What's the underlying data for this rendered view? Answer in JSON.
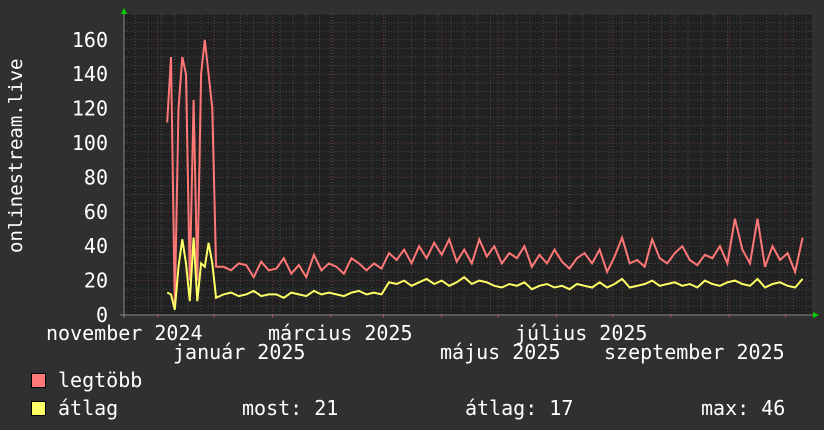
{
  "chart_data": {
    "type": "line",
    "ylabel": "onlinestream.live",
    "ylim": [
      0,
      175
    ],
    "yticks": [
      "0",
      "20",
      "40",
      "60",
      "80",
      "100",
      "120",
      "140",
      "160"
    ],
    "xlim": [
      "2024-10-14",
      "2025-10-15"
    ],
    "xtick_labels": [
      "november 2024",
      "január 2025",
      "március 2025",
      "május 2025",
      "július 2025",
      "szeptember 2025"
    ],
    "grid": true,
    "background": "#303030",
    "plot_background": "#212121",
    "x": [
      "2024-11-06",
      "2024-11-08",
      "2024-11-10",
      "2024-11-12",
      "2024-11-14",
      "2024-11-16",
      "2024-11-18",
      "2024-11-20",
      "2024-11-22",
      "2024-11-24",
      "2024-11-26",
      "2024-11-28",
      "2024-11-30",
      "2024-12-02",
      "2024-12-06",
      "2024-12-10",
      "2024-12-14",
      "2024-12-18",
      "2024-12-22",
      "2024-12-26",
      "2024-12-30",
      "2025-01-03",
      "2025-01-07",
      "2025-01-11",
      "2025-01-15",
      "2025-01-19",
      "2025-01-23",
      "2025-01-27",
      "2025-01-31",
      "2025-02-04",
      "2025-02-08",
      "2025-02-12",
      "2025-02-16",
      "2025-02-20",
      "2025-02-24",
      "2025-02-28",
      "2025-03-04",
      "2025-03-08",
      "2025-03-12",
      "2025-03-16",
      "2025-03-20",
      "2025-03-24",
      "2025-03-28",
      "2025-04-01",
      "2025-04-05",
      "2025-04-09",
      "2025-04-13",
      "2025-04-17",
      "2025-04-21",
      "2025-04-25",
      "2025-04-29",
      "2025-05-03",
      "2025-05-07",
      "2025-05-11",
      "2025-05-15",
      "2025-05-19",
      "2025-05-23",
      "2025-05-27",
      "2025-05-31",
      "2025-06-04",
      "2025-06-08",
      "2025-06-12",
      "2025-06-16",
      "2025-06-20",
      "2025-06-24",
      "2025-06-28",
      "2025-07-02",
      "2025-07-06",
      "2025-07-10",
      "2025-07-14",
      "2025-07-18",
      "2025-07-22",
      "2025-07-26",
      "2025-07-30",
      "2025-08-03",
      "2025-08-07",
      "2025-08-11",
      "2025-08-15",
      "2025-08-19",
      "2025-08-23",
      "2025-08-27",
      "2025-08-31",
      "2025-09-04",
      "2025-09-08",
      "2025-09-12",
      "2025-09-16",
      "2025-09-20",
      "2025-09-24",
      "2025-09-28",
      "2025-10-02",
      "2025-10-06",
      "2025-10-10"
    ],
    "series": [
      {
        "name": "legtöbb",
        "color": "#ff7777",
        "values": [
          112,
          150,
          5,
          120,
          150,
          140,
          20,
          125,
          20,
          140,
          160,
          140,
          120,
          28,
          28,
          26,
          30,
          29,
          22,
          31,
          26,
          27,
          33,
          24,
          29,
          22,
          35,
          26,
          30,
          28,
          24,
          33,
          30,
          26,
          30,
          27,
          36,
          32,
          38,
          30,
          40,
          33,
          42,
          35,
          44,
          31,
          38,
          30,
          44,
          34,
          40,
          30,
          36,
          33,
          40,
          28,
          35,
          30,
          38,
          31,
          27,
          33,
          36,
          30,
          38,
          25,
          34,
          45,
          30,
          32,
          28,
          44,
          33,
          30,
          36,
          40,
          32,
          29,
          35,
          33,
          40,
          30,
          56,
          38,
          30,
          56,
          28,
          40,
          32,
          36,
          25,
          45
        ]
      },
      {
        "name": "átlag",
        "color": "#ffff66",
        "values": [
          13,
          12,
          3,
          28,
          44,
          30,
          8,
          45,
          8,
          30,
          28,
          42,
          30,
          10,
          12,
          13,
          11,
          12,
          14,
          11,
          12,
          12,
          10,
          13,
          12,
          11,
          14,
          12,
          13,
          12,
          11,
          13,
          14,
          12,
          13,
          12,
          19,
          18,
          20,
          17,
          19,
          21,
          18,
          20,
          17,
          19,
          22,
          18,
          20,
          19,
          17,
          16,
          18,
          17,
          19,
          15,
          17,
          18,
          16,
          17,
          15,
          18,
          17,
          16,
          19,
          16,
          18,
          21,
          16,
          17,
          18,
          20,
          17,
          18,
          19,
          17,
          18,
          16,
          20,
          18,
          17,
          19,
          20,
          18,
          17,
          21,
          16,
          18,
          19,
          17,
          16,
          21
        ]
      }
    ],
    "legend": {
      "items": [
        {
          "label": "legtöbb",
          "color": "#ff7777"
        },
        {
          "label": "átlag",
          "color": "#ffff66"
        }
      ],
      "stats": {
        "now": "most: 21",
        "avg": "átlag: 17",
        "max": "max: 46"
      }
    }
  }
}
